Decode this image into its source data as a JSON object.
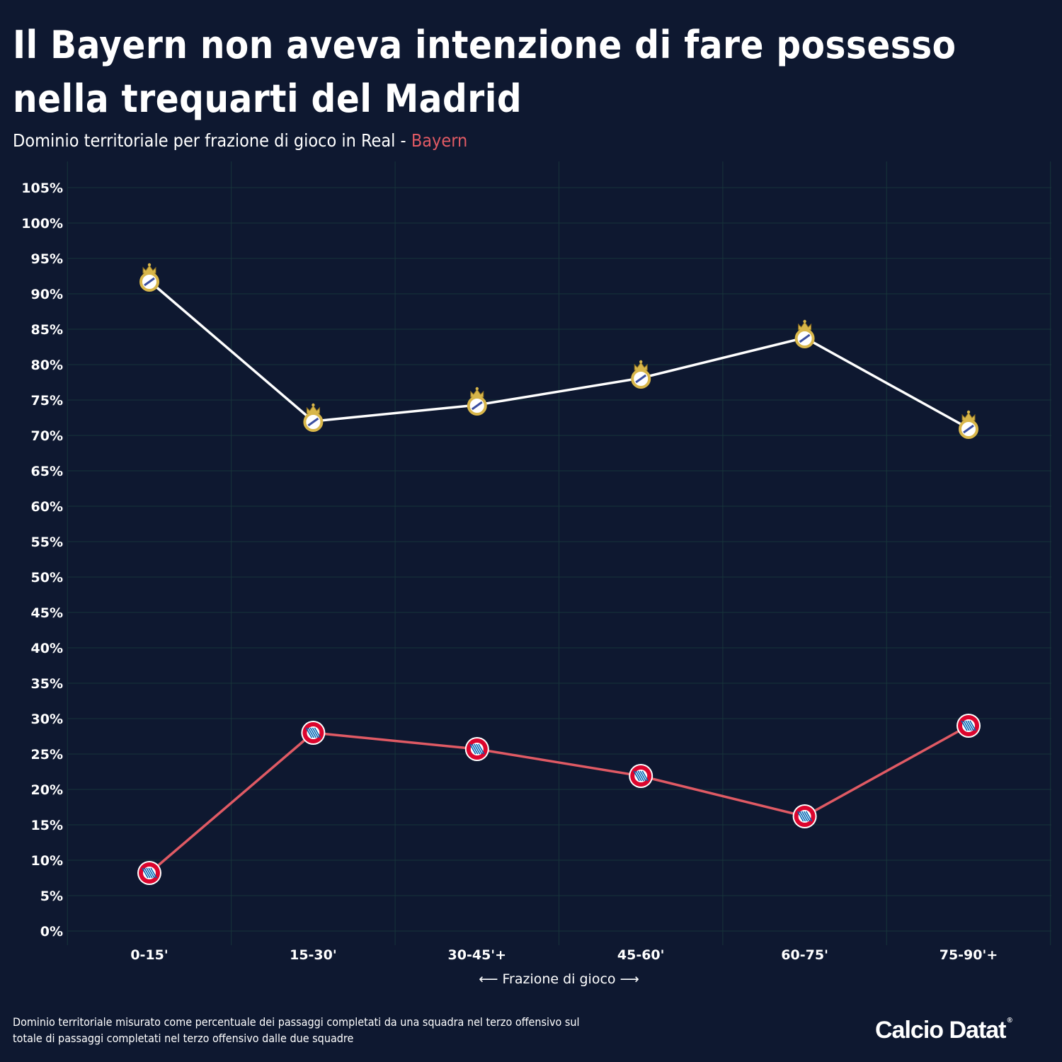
{
  "header": {
    "title": "Il Bayern non aveva intenzione di fare possesso nella trequarti del Madrid",
    "subtitle_prefix": "Dominio territoriale per frazione di gioco in Real - ",
    "subtitle_highlight": "Bayern"
  },
  "colors": {
    "background": "#0e1830",
    "real_line": "#ffffff",
    "bayern_line": "#e05a64",
    "grid": "#17343a",
    "real_crest_gold": "#d8b64a",
    "bayern_crest_red": "#dc052d",
    "bayern_crest_blue": "#0066b2"
  },
  "chart_data": {
    "type": "line",
    "categories": [
      "0-15'",
      "15-30'",
      "30-45'+",
      "45-60'",
      "60-75'",
      "75-90'+"
    ],
    "xlabel": "⟵ Frazione di gioco ⟶",
    "ylabel": "",
    "ylim": [
      0,
      105
    ],
    "y_tick_step": 5,
    "y_tick_suffix": "%",
    "grid": true,
    "series": [
      {
        "key": "real",
        "marker": "real-madrid-crest-icon",
        "values": [
          91.8,
          72.0,
          74.3,
          78.1,
          83.8,
          71.0
        ]
      },
      {
        "key": "bayern",
        "marker": "bayern-crest-icon",
        "values": [
          8.2,
          28.0,
          25.7,
          21.9,
          16.2,
          29.0
        ]
      }
    ]
  },
  "footer": {
    "note": "Dominio territoriale misurato come percentuale dei passaggi completati da una squadra nel terzo offensivo sul totale di passaggi completati nel terzo offensivo dalle due squadre",
    "brand": "Calcio Datat",
    "brand_mark": "®"
  }
}
